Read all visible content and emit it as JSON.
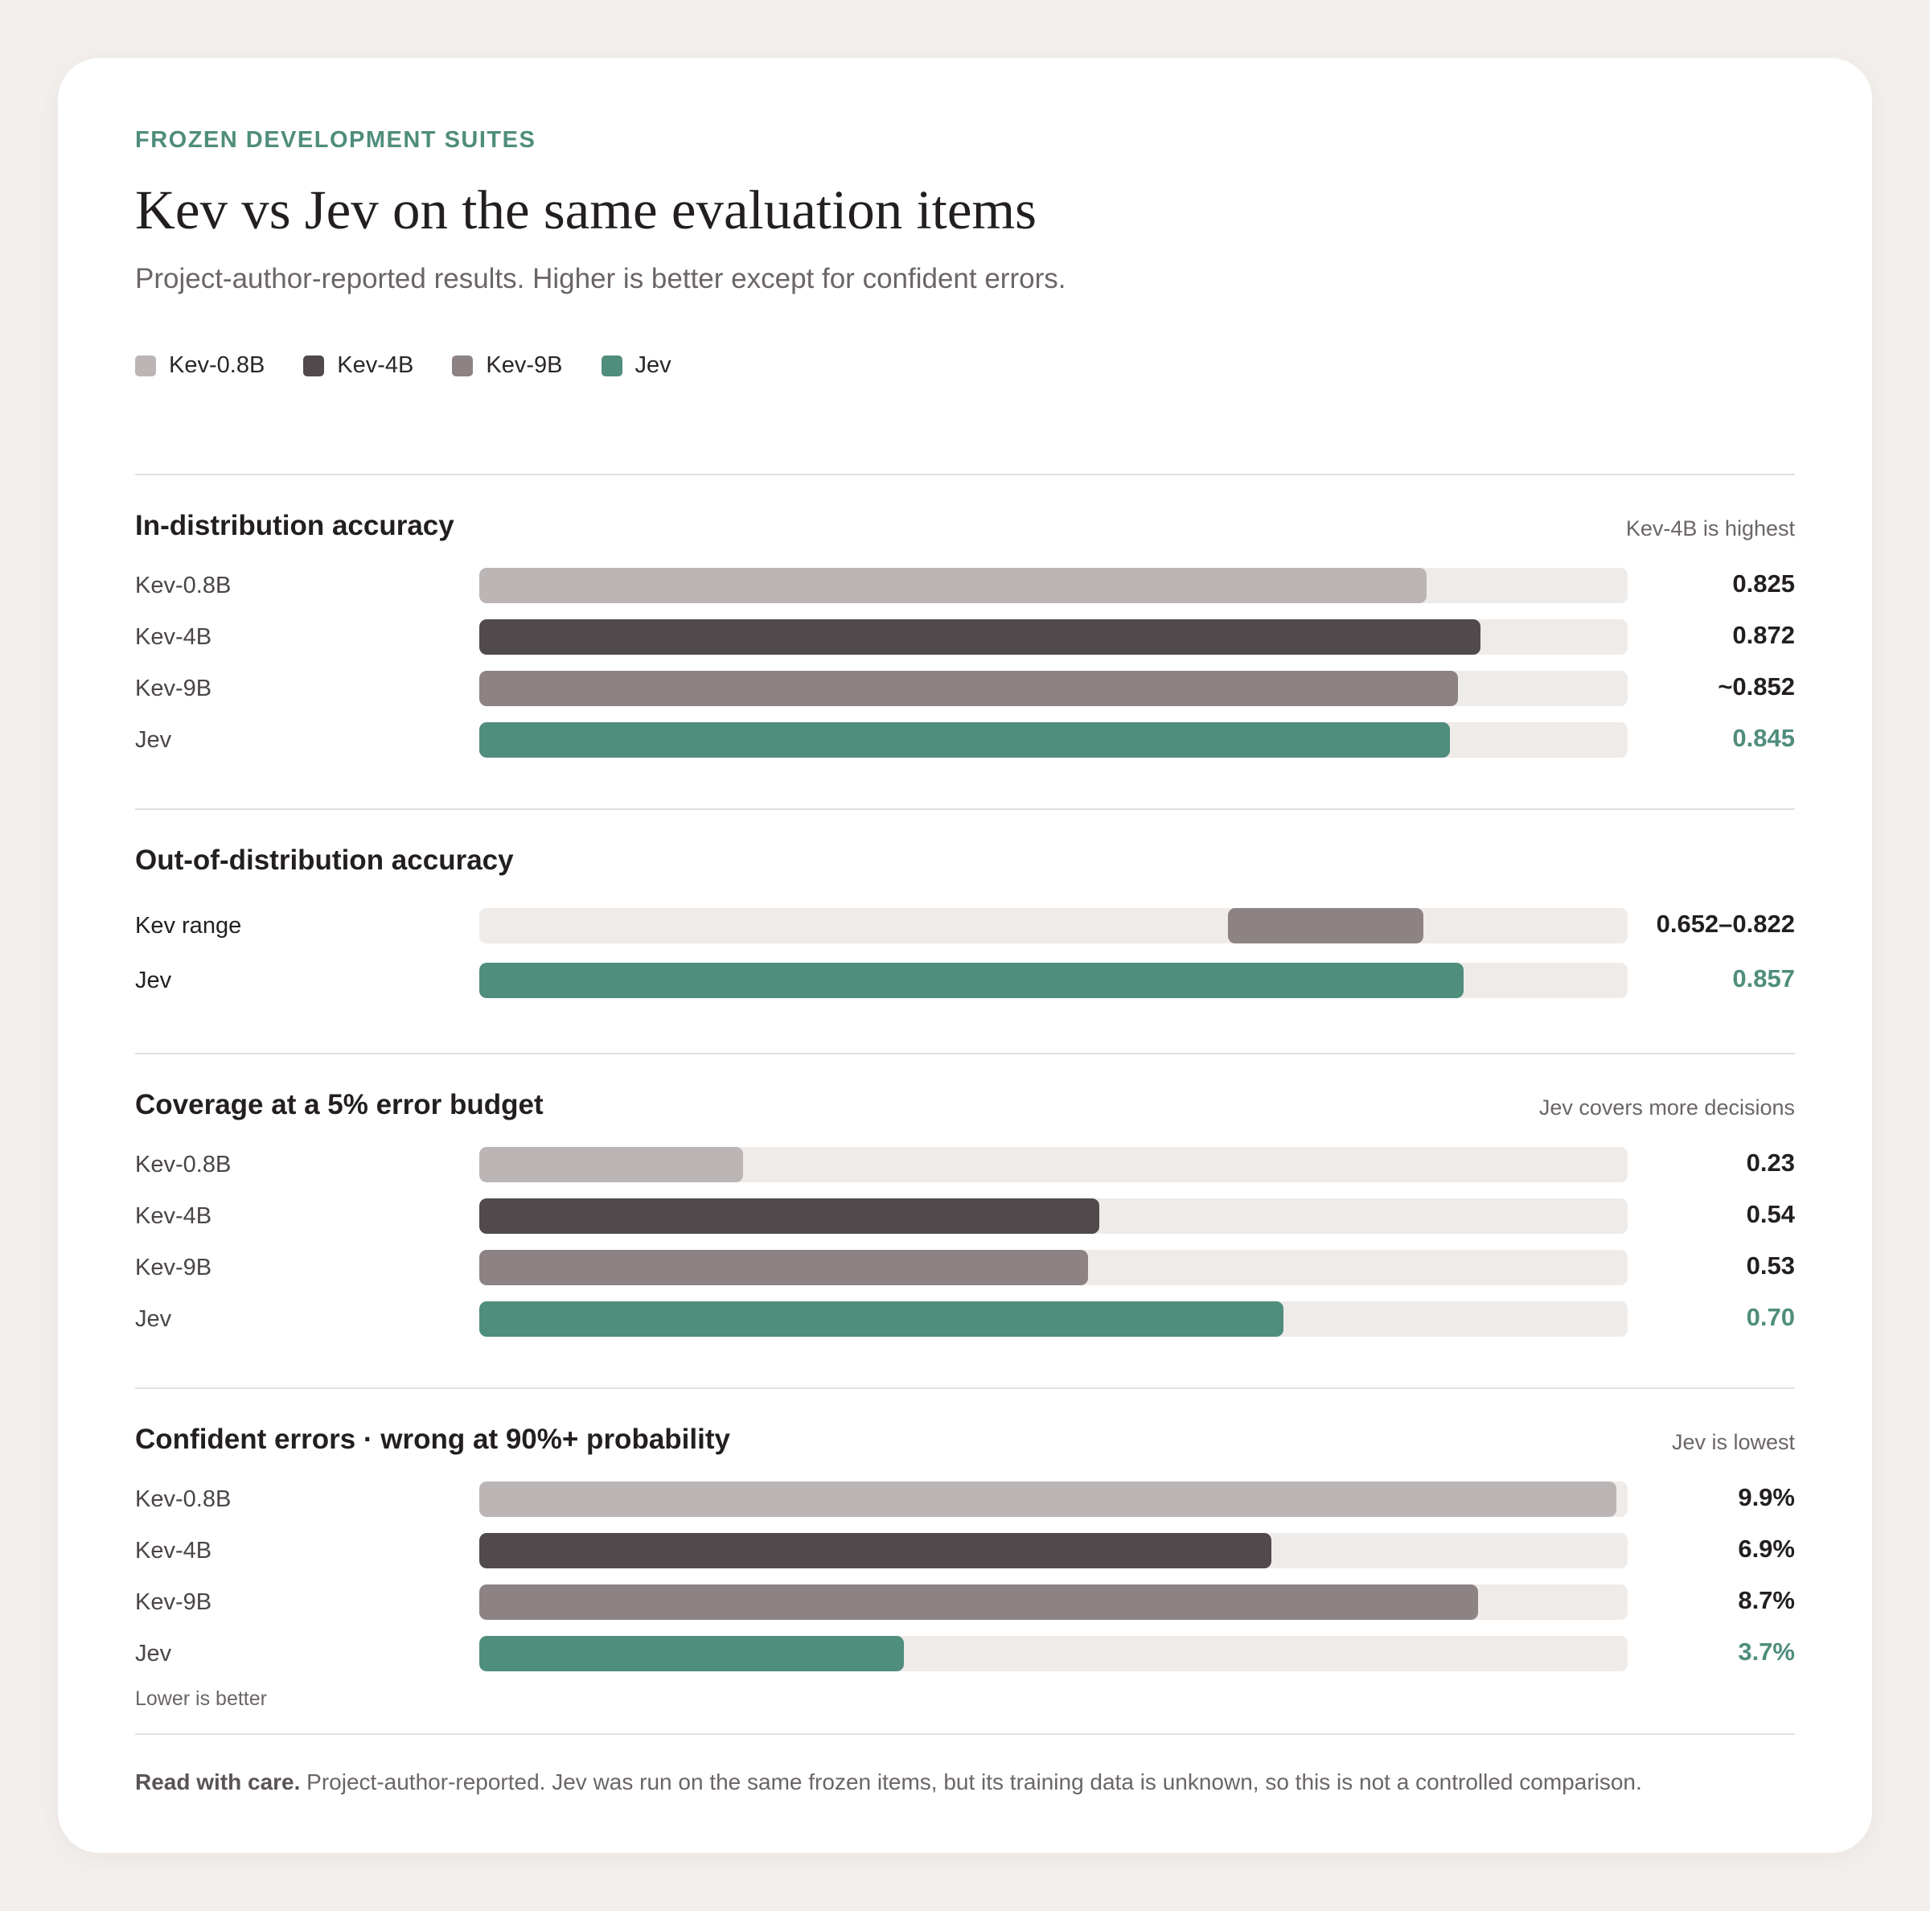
{
  "eyebrow": "FROZEN DEVELOPMENT SUITES",
  "title": "Kev vs Jev on the same evaluation items",
  "subtitle": "Project-author-reported results. Higher is better except for confident errors.",
  "colors": {
    "Kev-0.8B": "#bcb5b6",
    "Kev-4B": "#514a4d",
    "Kev-9B": "#8d8384",
    "Jev": "#4f8d7c",
    "track": "#efebe8"
  },
  "legend": [
    {
      "label": "Kev-0.8B",
      "color": "#bcb5b6"
    },
    {
      "label": "Kev-4B",
      "color": "#514a4d"
    },
    {
      "label": "Kev-9B",
      "color": "#8d8384"
    },
    {
      "label": "Jev",
      "color": "#4f8d7c"
    }
  ],
  "chart_data": [
    {
      "type": "bar",
      "title": "In-distribution accuracy",
      "note": "Kev-4B is highest",
      "xlim": [
        0,
        1
      ],
      "categories": [
        "Kev-0.8B",
        "Kev-4B",
        "Kev-9B",
        "Jev"
      ],
      "values": [
        0.825,
        0.872,
        0.852,
        0.845
      ],
      "value_labels": [
        "0.825",
        "0.872",
        "~0.852",
        "0.845"
      ]
    },
    {
      "type": "bar",
      "title": "Out-of-distribution accuracy",
      "note": "",
      "xlim": [
        0,
        1
      ],
      "categories": [
        "Kev range",
        "Jev"
      ],
      "values": [
        [
          0.652,
          0.822
        ],
        0.857
      ],
      "value_labels": [
        "0.652–0.822",
        "0.857"
      ]
    },
    {
      "type": "bar",
      "title": "Coverage at a 5% error budget",
      "note": "Jev covers more decisions",
      "xlim": [
        0,
        1
      ],
      "categories": [
        "Kev-0.8B",
        "Kev-4B",
        "Kev-9B",
        "Jev"
      ],
      "values": [
        0.23,
        0.54,
        0.53,
        0.7
      ],
      "value_labels": [
        "0.23",
        "0.54",
        "0.53",
        "0.70"
      ]
    },
    {
      "type": "bar",
      "title": "Confident errors · wrong at 90%+ probability",
      "note": "Jev is lowest",
      "footnote": "Lower is better",
      "xlim": [
        0,
        10
      ],
      "unit": "%",
      "categories": [
        "Kev-0.8B",
        "Kev-4B",
        "Kev-9B",
        "Jev"
      ],
      "values": [
        9.9,
        6.9,
        8.7,
        3.7
      ],
      "value_labels": [
        "9.9%",
        "6.9%",
        "8.7%",
        "3.7%"
      ]
    }
  ],
  "footer": {
    "bold": "Read with care.",
    "text": " Project-author-reported. Jev was run on the same frozen items, but its training data is unknown, so this is not a controlled comparison."
  }
}
